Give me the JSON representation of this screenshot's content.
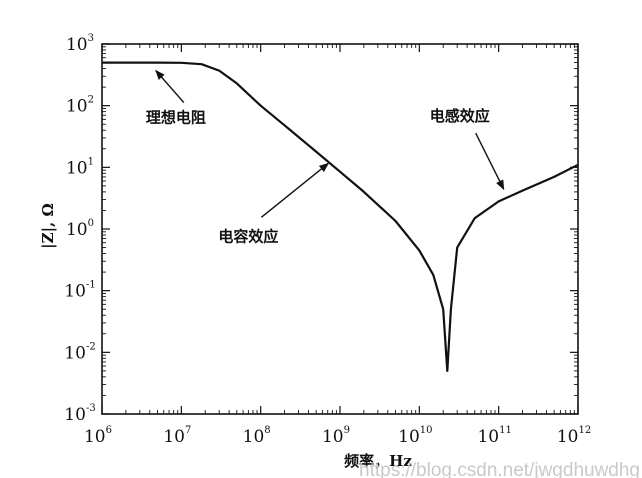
{
  "chart_data": {
    "type": "line",
    "title": "",
    "xlabel": "频率，Hz",
    "ylabel": "|Z|, Ω",
    "xscale": "log",
    "yscale": "log",
    "xlim": [
      1000000.0,
      1000000000000.0
    ],
    "ylim": [
      0.001,
      1000
    ],
    "grid": false,
    "x_ticks": [
      {
        "base": "10",
        "exp": "6",
        "value": 1000000.0
      },
      {
        "base": "10",
        "exp": "7",
        "value": 10000000.0
      },
      {
        "base": "10",
        "exp": "8",
        "value": 100000000.0
      },
      {
        "base": "10",
        "exp": "9",
        "value": 1000000000.0
      },
      {
        "base": "10",
        "exp": "10",
        "value": 10000000000.0
      },
      {
        "base": "10",
        "exp": "11",
        "value": 100000000000.0
      },
      {
        "base": "10",
        "exp": "12",
        "value": 1000000000000.0
      }
    ],
    "y_ticks": [
      {
        "base": "10",
        "exp": "3",
        "value": 1000
      },
      {
        "base": "10",
        "exp": "2",
        "value": 100
      },
      {
        "base": "10",
        "exp": "1",
        "value": 10
      },
      {
        "base": "10",
        "exp": "0",
        "value": 1
      },
      {
        "base": "10",
        "exp": "-1",
        "value": 0.1
      },
      {
        "base": "10",
        "exp": "-2",
        "value": 0.01
      },
      {
        "base": "10",
        "exp": "-3",
        "value": 0.001
      }
    ],
    "series": [
      {
        "x": [
          1000000.0,
          2000000.0,
          5000000.0,
          10000000.0,
          18000000.0,
          30000000.0,
          50000000.0,
          100000000.0,
          200000000.0,
          500000000.0,
          1000000000.0,
          2000000000.0,
          5000000000.0,
          10000000000.0,
          15000000000.0,
          20000000000.0,
          22500000000.0,
          25000000000.0,
          30000000000.0,
          50000000000.0,
          100000000000.0,
          200000000000.0,
          500000000000.0,
          1000000000000.0
        ],
        "y": [
          500,
          500,
          500,
          495,
          470,
          370,
          230,
          100,
          48,
          18,
          8.5,
          4.0,
          1.35,
          0.45,
          0.18,
          0.05,
          0.005,
          0.05,
          0.5,
          1.5,
          2.8,
          4.2,
          7.0,
          11
        ]
      }
    ],
    "annotations": [
      {
        "text": "理想电阻",
        "x": 4500000.0,
        "y": 500
      },
      {
        "text": "电容效应",
        "x": 900000000.0,
        "y": 10
      },
      {
        "text": "电感效应",
        "x": 130000000000.0,
        "y": 3.8
      }
    ]
  },
  "watermark": "https://blog.csdn.net/jwgdhuwdhg"
}
